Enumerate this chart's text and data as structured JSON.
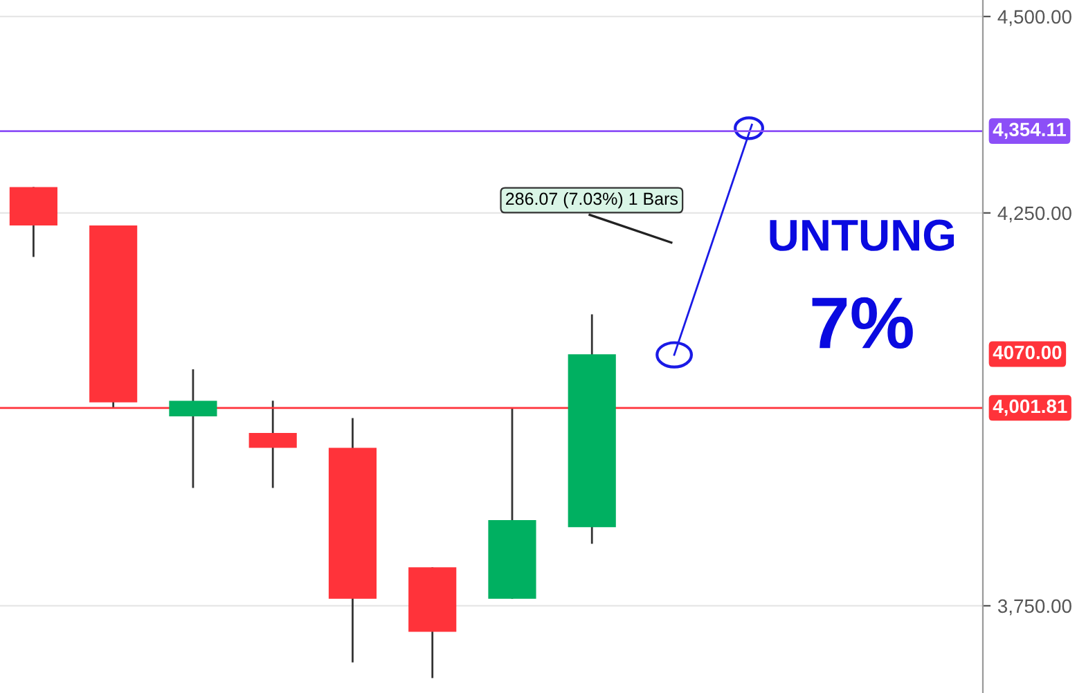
{
  "chart_data": {
    "type": "candlestick",
    "categories": [
      null,
      null,
      null,
      null,
      null,
      null,
      null,
      null,
      null,
      null,
      null,
      null
    ],
    "ohlc": [
      [
        4283,
        4283,
        4194,
        4234
      ],
      [
        4234,
        4234,
        4002,
        4009
      ],
      [
        3991,
        4051,
        3900,
        4011
      ],
      [
        3970,
        4011,
        3900,
        3951
      ],
      [
        3951,
        3989,
        3678,
        3759
      ],
      [
        3799,
        3799,
        3658,
        3717
      ],
      [
        3759,
        4002,
        3759,
        3859
      ],
      [
        3850,
        4121,
        3829,
        4070
      ],
      null,
      null,
      null,
      null
    ],
    "colors": [
      "#ff333a",
      "#ff333a",
      "#00b061",
      "#ff333a",
      "#ff333a",
      "#ff333a",
      "#00b061",
      "#00b061",
      null,
      null,
      null,
      null
    ],
    "ylim": [
      3639,
      4521
    ],
    "yticks": [
      {
        "value": 4500,
        "label": "4,500.00"
      },
      {
        "value": 4250,
        "label": "4,250.00"
      },
      {
        "value": 3750,
        "label": "3,750.00"
      }
    ],
    "grid": "y",
    "ref_lines": [
      {
        "axis": "y",
        "value": 4354.11,
        "label": "4,354.11",
        "color": "#8c4ff7"
      },
      {
        "axis": "y",
        "value": 4001.81,
        "label": "4,001.81",
        "color": "#ff333a"
      }
    ],
    "annotations": [
      "4070.00",
      "286.07 (7.03%) 1 Bars",
      "UNTUNG",
      "7%"
    ]
  }
}
